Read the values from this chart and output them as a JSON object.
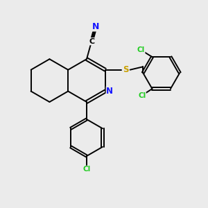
{
  "background_color": "#ebebeb",
  "atom_colors": {
    "C": "#000000",
    "N": "#1515ff",
    "S": "#c8a000",
    "Cl": "#22cc22"
  },
  "bond_color": "#000000",
  "lw": 1.4
}
